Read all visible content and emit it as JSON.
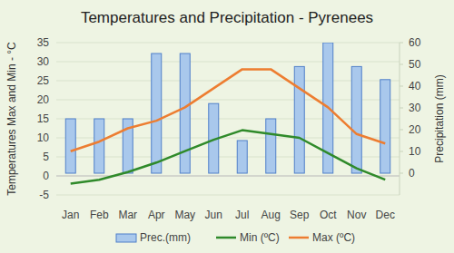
{
  "chart_data": {
    "type": "combo",
    "title": "Temperatures and Precipitation - Pyrenees",
    "y_label": "Temperatures Max and Min - °C",
    "y2_label": "Precipitation (mm)",
    "categories": [
      "Jan",
      "Feb",
      "Mar",
      "Apr",
      "May",
      "Jun",
      "Jul",
      "Aug",
      "Sep",
      "Oct",
      "Nov",
      "Dec"
    ],
    "series": [
      {
        "name": "Prec.(mm)",
        "type": "bar",
        "axis": "y2",
        "color": "#a9c8ec",
        "values": [
          25,
          25,
          25,
          55,
          55,
          32,
          15,
          25,
          49,
          60,
          49,
          43
        ]
      },
      {
        "name": "Min (ºC)",
        "type": "line",
        "color": "#2f8a2a",
        "values": [
          -2,
          -1,
          1,
          3.5,
          6.5,
          9.5,
          12,
          11,
          10,
          6,
          2,
          -1
        ]
      },
      {
        "name": "Max (ºC)",
        "type": "line",
        "color": "#ed7d31",
        "values": [
          6.5,
          9,
          12.5,
          14.5,
          18,
          23,
          28,
          28,
          23,
          18,
          11,
          8.5
        ]
      }
    ],
    "ylim": [
      -5,
      35
    ],
    "yticks": [
      -5,
      0,
      5,
      10,
      15,
      20,
      25,
      30,
      35
    ],
    "y2lim": [
      -10,
      60
    ],
    "y2ticks": [
      0,
      10,
      20,
      30,
      40,
      50,
      60
    ],
    "grid": true,
    "legend": "bottom"
  }
}
